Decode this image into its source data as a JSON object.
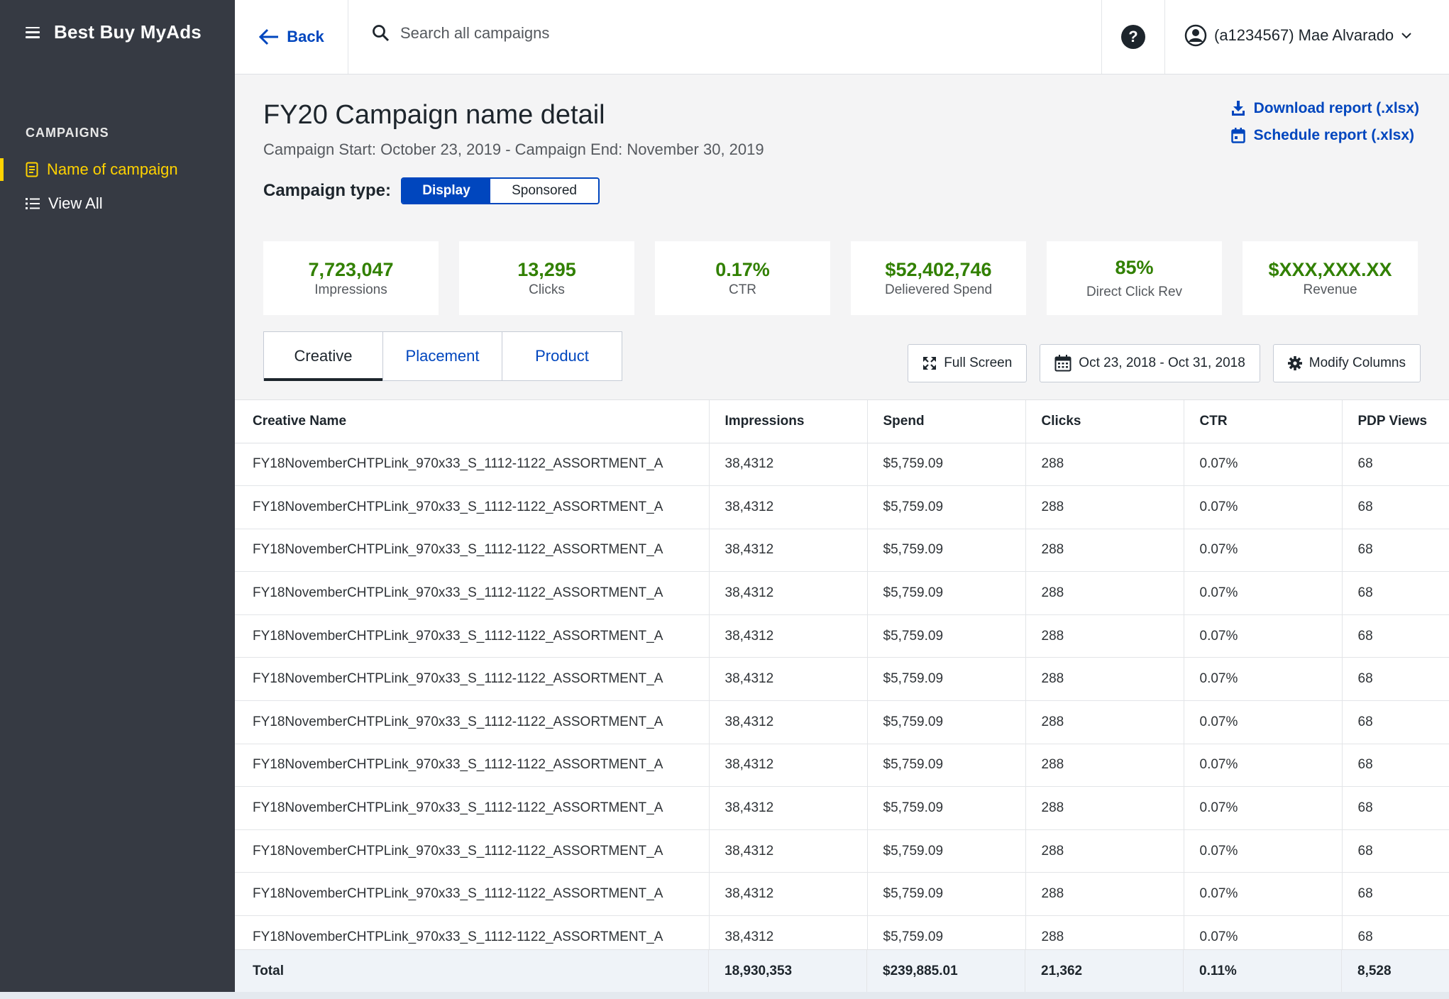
{
  "sidebar": {
    "brand": "Best Buy MyAds",
    "section_label": "CAMPAIGNS",
    "items": [
      {
        "label": "Name of campaign",
        "icon": "document-icon"
      },
      {
        "label": "View All",
        "icon": "list-icon"
      }
    ]
  },
  "topbar": {
    "back_label": "Back",
    "search_placeholder": "Search all campaigns",
    "help_glyph": "?",
    "user_label": "(a1234567) Mae Alvarado"
  },
  "page": {
    "title": "FY20 Campaign name detail",
    "dates": "Campaign Start: October 23, 2019 - Campaign End: November 30, 2019",
    "campaign_type_label": "Campaign type:",
    "campaign_type_options": [
      "Display",
      "Sponsored"
    ],
    "download_label": "Download report (.xlsx)",
    "schedule_label": "Schedule report (.xlsx)"
  },
  "metrics": [
    {
      "value": "7,723,047",
      "label": "Impressions"
    },
    {
      "value": "13,295",
      "label": "Clicks"
    },
    {
      "value": "0.17%",
      "label": "CTR"
    },
    {
      "value": "$52,402,746",
      "label": "Delievered Spend"
    },
    {
      "value": "85%",
      "label": "Direct Click Rev"
    },
    {
      "value": "$XXX,XXX.XX",
      "label": "Revenue"
    }
  ],
  "tabs": [
    "Creative",
    "Placement",
    "Product"
  ],
  "tools": {
    "fullscreen_label": "Full Screen",
    "date_range_label": "Oct 23, 2018 - Oct 31, 2018",
    "modify_columns_label": "Modify Columns"
  },
  "table": {
    "columns": [
      "Creative Name",
      "Impressions",
      "Spend",
      "Clicks",
      "CTR",
      "PDP Views"
    ],
    "rows": [
      [
        "FY18NovemberCHTPLink_970x33_S_1112-1122_ASSORTMENT_A",
        "38,4312",
        "$5,759.09",
        "288",
        "0.07%",
        "68"
      ],
      [
        "FY18NovemberCHTPLink_970x33_S_1112-1122_ASSORTMENT_A",
        "38,4312",
        "$5,759.09",
        "288",
        "0.07%",
        "68"
      ],
      [
        "FY18NovemberCHTPLink_970x33_S_1112-1122_ASSORTMENT_A",
        "38,4312",
        "$5,759.09",
        "288",
        "0.07%",
        "68"
      ],
      [
        "FY18NovemberCHTPLink_970x33_S_1112-1122_ASSORTMENT_A",
        "38,4312",
        "$5,759.09",
        "288",
        "0.07%",
        "68"
      ],
      [
        "FY18NovemberCHTPLink_970x33_S_1112-1122_ASSORTMENT_A",
        "38,4312",
        "$5,759.09",
        "288",
        "0.07%",
        "68"
      ],
      [
        "FY18NovemberCHTPLink_970x33_S_1112-1122_ASSORTMENT_A",
        "38,4312",
        "$5,759.09",
        "288",
        "0.07%",
        "68"
      ],
      [
        "FY18NovemberCHTPLink_970x33_S_1112-1122_ASSORTMENT_A",
        "38,4312",
        "$5,759.09",
        "288",
        "0.07%",
        "68"
      ],
      [
        "FY18NovemberCHTPLink_970x33_S_1112-1122_ASSORTMENT_A",
        "38,4312",
        "$5,759.09",
        "288",
        "0.07%",
        "68"
      ],
      [
        "FY18NovemberCHTPLink_970x33_S_1112-1122_ASSORTMENT_A",
        "38,4312",
        "$5,759.09",
        "288",
        "0.07%",
        "68"
      ],
      [
        "FY18NovemberCHTPLink_970x33_S_1112-1122_ASSORTMENT_A",
        "38,4312",
        "$5,759.09",
        "288",
        "0.07%",
        "68"
      ],
      [
        "FY18NovemberCHTPLink_970x33_S_1112-1122_ASSORTMENT_A",
        "38,4312",
        "$5,759.09",
        "288",
        "0.07%",
        "68"
      ],
      [
        "FY18NovemberCHTPLink_970x33_S_1112-1122_ASSORTMENT_A",
        "38,4312",
        "$5,759.09",
        "288",
        "0.07%",
        "68"
      ]
    ],
    "totals": [
      "Total",
      "18,930,353",
      "$239,885.01",
      "21,362",
      "0.11%",
      "8,528"
    ]
  },
  "colors": {
    "sidebar_bg": "#363a43",
    "accent_blue": "#0046be",
    "active_yellow": "#ffd200",
    "metric_green": "#318000"
  }
}
